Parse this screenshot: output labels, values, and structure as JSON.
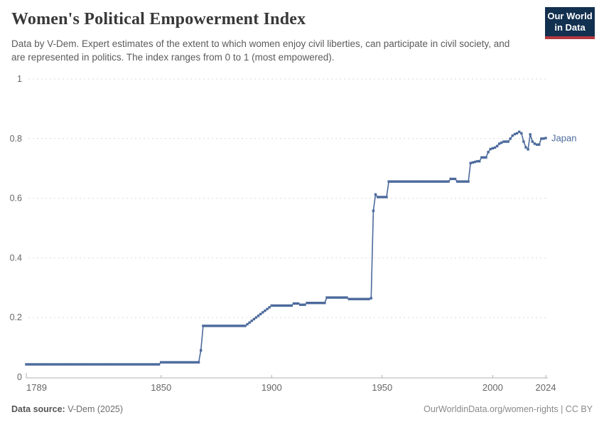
{
  "header": {
    "title": "Women's Political Empowerment Index",
    "subtitle": "Data by V-Dem. Expert estimates of the extent to which women enjoy civil liberties, can participate in civil society, and are represented in politics. The index ranges from 0 to 1 (most empowered)."
  },
  "logo": {
    "line1": "Our World",
    "line2": "in Data",
    "bg_color": "#12304f",
    "accent_color": "#b5383f"
  },
  "footer": {
    "source_label": "Data source:",
    "source_value": " V-Dem (2025)",
    "credit": "OurWorldinData.org/women-rights | CC BY"
  },
  "chart_data": {
    "type": "line",
    "title": "Women's Political Empowerment Index",
    "xlabel": "",
    "ylabel": "",
    "xlim": [
      1789,
      2024
    ],
    "ylim": [
      0,
      1
    ],
    "xticks": [
      1789,
      1850,
      1900,
      1950,
      2000,
      2024
    ],
    "yticks": [
      0,
      0.2,
      0.4,
      0.6,
      0.8,
      1
    ],
    "grid": "dashed-horizontal",
    "legend": "end-of-line-label",
    "interpolation": "yearly points, linear between breakpoints",
    "series": [
      {
        "name": "Japan",
        "color": "#4c6a9c",
        "breakpoints": [
          [
            1789,
            0.043
          ],
          [
            1849,
            0.043
          ],
          [
            1850,
            0.05
          ],
          [
            1867,
            0.05
          ],
          [
            1868,
            0.09
          ],
          [
            1869,
            0.172
          ],
          [
            1888,
            0.172
          ],
          [
            1900,
            0.24
          ],
          [
            1909,
            0.24
          ],
          [
            1910,
            0.247
          ],
          [
            1912,
            0.247
          ],
          [
            1913,
            0.243
          ],
          [
            1915,
            0.243
          ],
          [
            1916,
            0.249
          ],
          [
            1924,
            0.249
          ],
          [
            1925,
            0.267
          ],
          [
            1934,
            0.267
          ],
          [
            1935,
            0.262
          ],
          [
            1944,
            0.262
          ],
          [
            1945,
            0.265
          ],
          [
            1946,
            0.558
          ],
          [
            1947,
            0.613
          ],
          [
            1948,
            0.604
          ],
          [
            1952,
            0.604
          ],
          [
            1953,
            0.656
          ],
          [
            1980,
            0.656
          ],
          [
            1981,
            0.665
          ],
          [
            1983,
            0.665
          ],
          [
            1984,
            0.656
          ],
          [
            1989,
            0.656
          ],
          [
            1990,
            0.718
          ],
          [
            1993,
            0.724
          ],
          [
            1994,
            0.724
          ],
          [
            1995,
            0.737
          ],
          [
            1997,
            0.737
          ],
          [
            1998,
            0.755
          ],
          [
            1999,
            0.765
          ],
          [
            2001,
            0.77
          ],
          [
            2002,
            0.775
          ],
          [
            2003,
            0.783
          ],
          [
            2005,
            0.79
          ],
          [
            2007,
            0.79
          ],
          [
            2008,
            0.8
          ],
          [
            2009,
            0.81
          ],
          [
            2010,
            0.815
          ],
          [
            2011,
            0.818
          ],
          [
            2012,
            0.823
          ],
          [
            2013,
            0.818
          ],
          [
            2014,
            0.79
          ],
          [
            2015,
            0.771
          ],
          [
            2016,
            0.764
          ],
          [
            2017,
            0.814
          ],
          [
            2018,
            0.79
          ],
          [
            2019,
            0.783
          ],
          [
            2020,
            0.78
          ],
          [
            2021,
            0.78
          ],
          [
            2022,
            0.8
          ],
          [
            2023,
            0.8
          ],
          [
            2024,
            0.802
          ]
        ]
      }
    ],
    "colors": {
      "gridline": "#d9d9d9",
      "axis": "#b0b0b0",
      "tick_label": "#666666"
    }
  }
}
